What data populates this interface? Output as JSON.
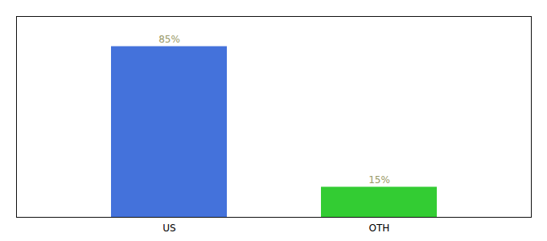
{
  "chart_data": {
    "type": "bar",
    "categories": [
      "US",
      "OTH"
    ],
    "values": [
      85,
      15
    ],
    "value_labels": [
      "85%",
      "15%"
    ],
    "colors": [
      "#4472db",
      "#33cc33"
    ],
    "ylim": [
      0,
      100
    ],
    "data_labels": true,
    "tick_labels": "x",
    "grid": false
  }
}
